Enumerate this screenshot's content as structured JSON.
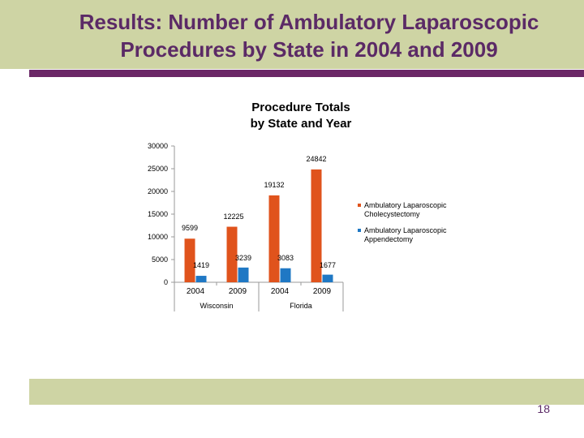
{
  "slide": {
    "title": "Results: Number of Ambulatory Laparoscopic\nProcedures by State in 2004 and 2009",
    "page_number": "18"
  },
  "colors": {
    "title_band": "#ced4a4",
    "title_text": "#5b2a66",
    "title_rule": "#6b2867",
    "series_chole": "#e0531c",
    "series_append": "#1f78c4"
  },
  "chart_data": {
    "type": "bar",
    "title": "Procedure Totals\nby State and Year",
    "ylim": [
      0,
      30000
    ],
    "yticks": [
      "0",
      "5000",
      "10000",
      "15000",
      "20000",
      "25000",
      "30000"
    ],
    "categories": [
      "2004",
      "2009",
      "2004",
      "2009"
    ],
    "groups": [
      {
        "label": "Wisconsin"
      },
      {
        "label": "Florida"
      }
    ],
    "series": [
      {
        "name": "Ambulatory Laparoscopic Cholecystectomy",
        "values": [
          9599,
          12225,
          19132,
          24842
        ],
        "labels": [
          "9599",
          "12225",
          "19132",
          "24842"
        ]
      },
      {
        "name": "Ambulatory Laparoscopic Appendectomy",
        "values": [
          1419,
          3239,
          3083,
          1677
        ],
        "labels": [
          "1419",
          "3239",
          "3083",
          "1677"
        ]
      }
    ],
    "legend_position": "right",
    "grid": false
  }
}
